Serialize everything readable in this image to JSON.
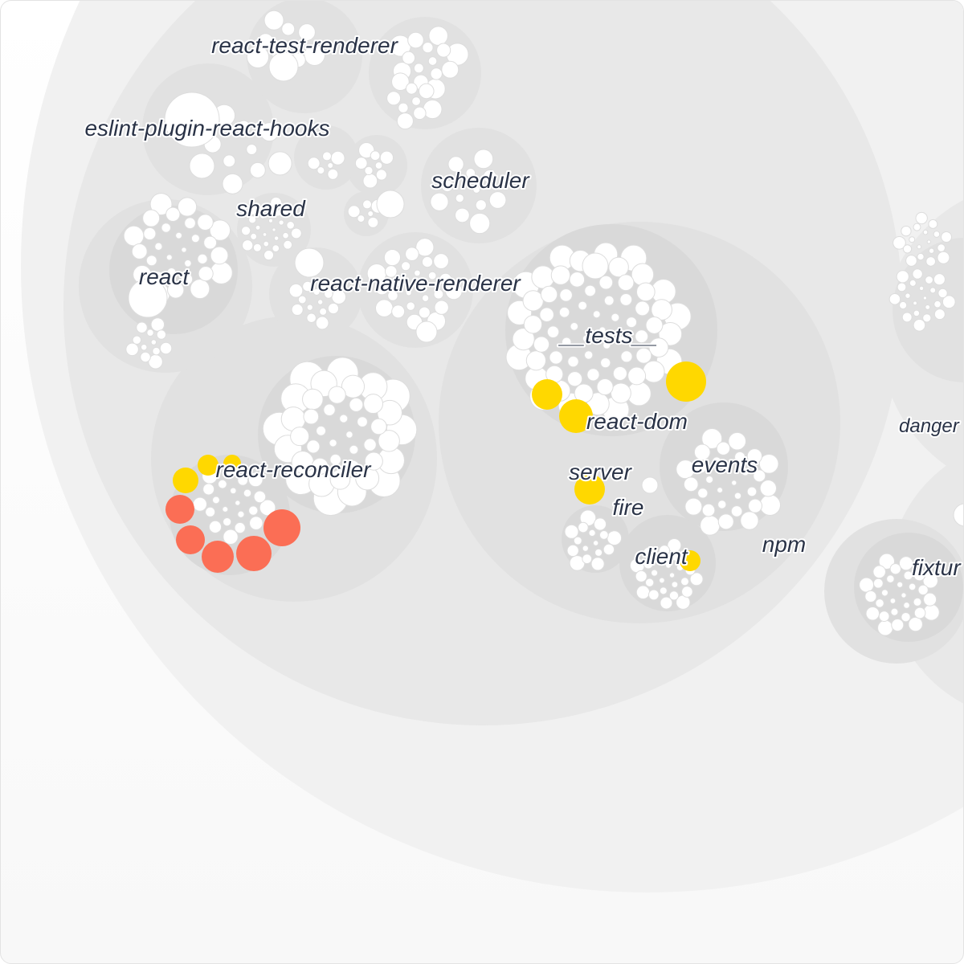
{
  "labels": {
    "react_test_renderer": "react-test-renderer",
    "eslint_plugin_react_hooks": "eslint-plugin-react-hooks",
    "scheduler": "scheduler",
    "shared": "shared",
    "react": "react",
    "react_native_renderer": "react-native-renderer",
    "tests": "__tests__",
    "react_dom": "react-dom",
    "react_reconciler": "react-reconciler",
    "server": "server",
    "events": "events",
    "fire": "fire",
    "client": "client",
    "npm": "npm",
    "danger": "danger",
    "fixtures": "fixtur"
  },
  "colors": {
    "background": "#ffffff",
    "pack_level_1": "#f1f1f1",
    "pack_level_2": "#e8e8e8",
    "pack_level_3": "#e1e1e1",
    "pack_level_4": "#d9d9d9",
    "file": "#ffffff",
    "highlight_yellow": "#ffd800",
    "highlight_orange": "#fb6e55",
    "label": "#2a3347"
  }
}
